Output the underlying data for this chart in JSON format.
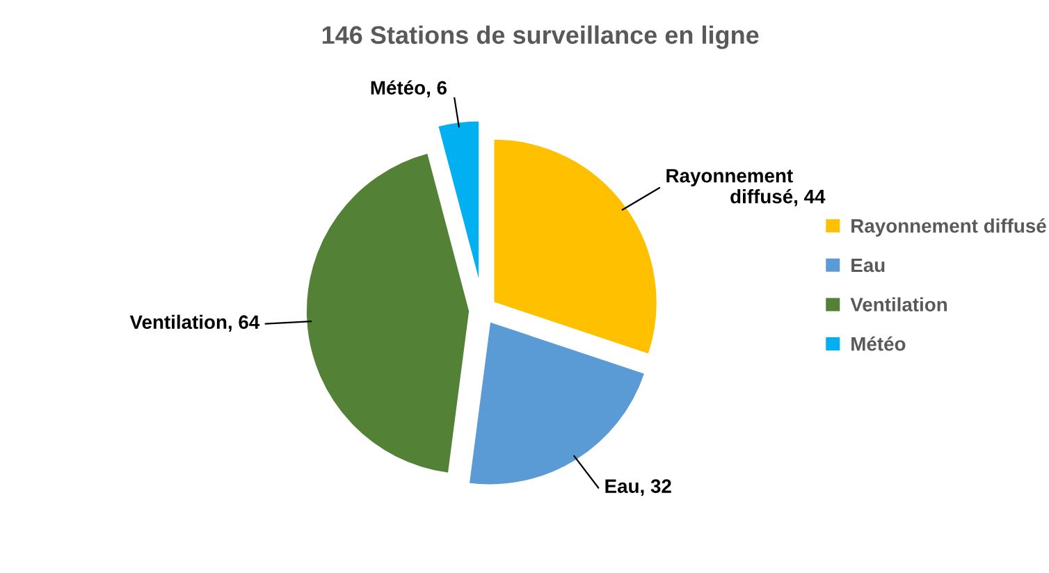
{
  "chart_data": {
    "type": "pie",
    "title": "146 Stations de surveillance en ligne",
    "categories": [
      "Rayonnement diffusé",
      "Eau",
      "Ventilation",
      "Météo"
    ],
    "values": [
      44,
      32,
      64,
      6
    ],
    "value_labels": [
      ", 44",
      ", 32",
      ", 64",
      ", 6"
    ],
    "colors": [
      "#ffc000",
      "#5b9bd5",
      "#538135",
      "#00b0f0"
    ],
    "legend": "right"
  }
}
